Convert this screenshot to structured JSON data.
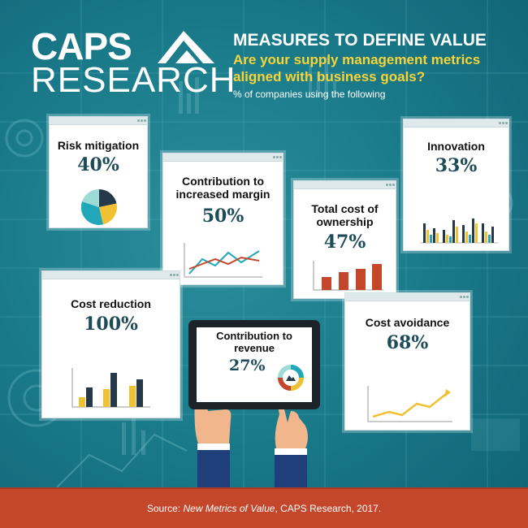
{
  "logo": {
    "line1": "CAPS",
    "line2": "RESEARCH"
  },
  "header": {
    "title": "MEASURES TO DEFINE VALUE",
    "subtitle": "Are your supply management metrics aligned with business goals?",
    "caption": "% of companies using the following"
  },
  "metrics": [
    {
      "label": "Risk mitigation",
      "percent": "40%",
      "chart": "pie"
    },
    {
      "label": "Contribution to increased margin",
      "percent": "50%",
      "chart": "line"
    },
    {
      "label": "Total cost of ownership",
      "percent": "47%",
      "chart": "bar"
    },
    {
      "label": "Innovation",
      "percent": "33%",
      "chart": "bar"
    },
    {
      "label": "Cost reduction",
      "percent": "100%",
      "chart": "bar"
    },
    {
      "label": "Contribution to revenue",
      "percent": "27%",
      "chart": "donut"
    },
    {
      "label": "Cost avoidance",
      "percent": "68%",
      "chart": "line"
    }
  ],
  "footer": {
    "prefix": "Source: ",
    "publication": "New Metrics of Value",
    "suffix": ", CAPS Research, 2017."
  },
  "colors": {
    "background": "#1b7c8c",
    "title": "#ffffff",
    "subtitle": "#f7d438",
    "percent": "#1d4b57",
    "footer": "#c5472b",
    "navy": "#25394b",
    "yellow": "#f0c233",
    "teal": "#21a7b9",
    "red": "#c5472b"
  }
}
